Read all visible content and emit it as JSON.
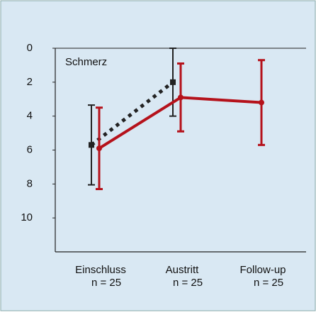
{
  "chart_data": {
    "type": "line",
    "annotations": [
      "Schmerz"
    ],
    "categories": [
      "Einschluss",
      "Austritt",
      "Follow-up"
    ],
    "sample_labels": [
      "n = 25",
      "n = 25",
      "n = 25"
    ],
    "series": [
      {
        "color": "#222222",
        "line_style": "dotted",
        "values": [
          5.7,
          2.0,
          null
        ],
        "errors": [
          2.35,
          2.0,
          null
        ]
      },
      {
        "color": "#b5121b",
        "line_style": "solid",
        "values": [
          5.9,
          2.9,
          3.2
        ],
        "errors": [
          2.4,
          2.0,
          2.5
        ]
      }
    ],
    "ylim": [
      0,
      12
    ],
    "y_inverted": true,
    "yticks": [
      0,
      2,
      4,
      6,
      8,
      10
    ]
  }
}
